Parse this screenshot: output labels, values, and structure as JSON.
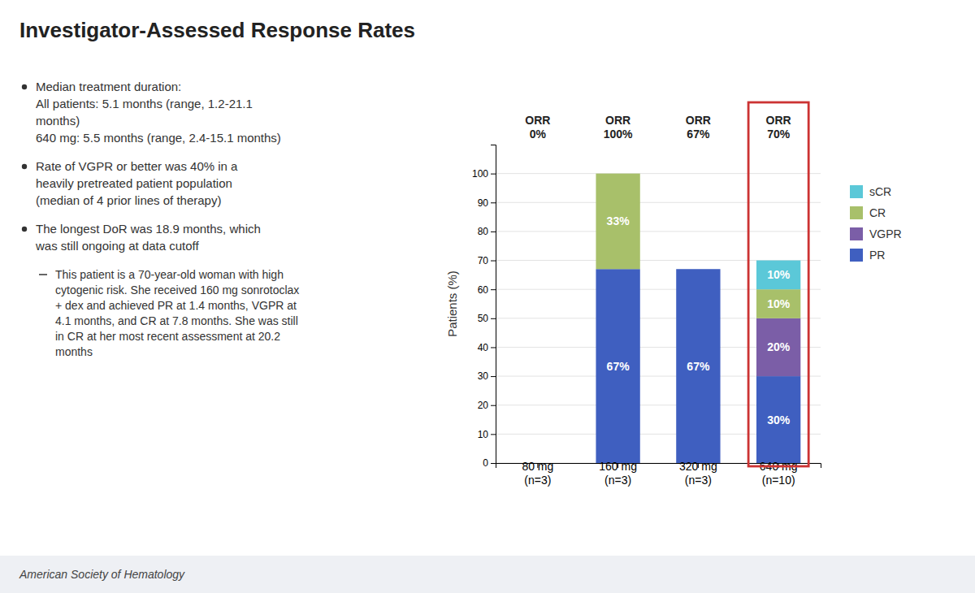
{
  "chart_data": {
    "type": "bar",
    "stacked": true,
    "title": "Investigator-Assessed Response Rates",
    "ylabel": "Patients (%)",
    "categories": [
      "80 mg\n(n=3)",
      "160 mg\n(n=3)",
      "320 mg\n(n=3)",
      "640 mg\n(n=10)"
    ],
    "series": [
      {
        "name": "PR",
        "color": "#3f5fc0",
        "values": [
          0,
          67,
          67,
          30
        ],
        "value_labels": [
          null,
          "67%",
          "67%",
          "30%"
        ]
      },
      {
        "name": "VGPR",
        "color": "#7b5ea7",
        "values": [
          0,
          0,
          0,
          20
        ],
        "value_labels": [
          null,
          null,
          null,
          "20%"
        ]
      },
      {
        "name": "CR",
        "color": "#a8c06a",
        "values": [
          0,
          33,
          0,
          10
        ],
        "value_labels": [
          null,
          "33%",
          null,
          "10%"
        ]
      },
      {
        "name": "sCR",
        "color": "#5bc8d8",
        "values": [
          0,
          0,
          0,
          10
        ],
        "value_labels": [
          null,
          null,
          null,
          "10%"
        ]
      }
    ],
    "data_labels": true,
    "ylim": [
      0,
      110
    ],
    "yticks": [
      0,
      10,
      20,
      30,
      40,
      50,
      60,
      70,
      80,
      90,
      100
    ],
    "grid": true,
    "legend": "right",
    "annotations": [
      {
        "category": "80 mg\n(n=3)",
        "text": "ORR\n0%"
      },
      {
        "category": "160 mg\n(n=3)",
        "text": "ORR\n100%"
      },
      {
        "category": "320 mg\n(n=3)",
        "text": "ORR\n67%"
      },
      {
        "category": "640 mg\n(n=10)",
        "text": "ORR\n70%"
      }
    ],
    "highlight": {
      "category": "640 mg\n(n=10)",
      "color": "#cc3333"
    }
  },
  "text_panel": {
    "bullet_points": [
      "Median treatment duration:\nAll patients: 5.1 months (range, 1.2-21.1\nmonths)\n640 mg: 5.5 months (range, 2.4-15.1 months)",
      "Rate of VGPR or better was 40% in a\nheavily pretreated patient population\n(median of 4 prior lines of therapy)",
      "The longest DoR was 18.9 months, which\nwas still ongoing at data cutoff"
    ],
    "sub_bullet": "This patient is a 70-year-old woman with high\ncytogenic risk. She received 160 mg sonrotoclax\n+ dex and achieved PR at 1.4 months, VGPR at\n4.1 months, and CR at 7.8 months. She was still\nin CR at her most recent assessment at 20.2\nmonths"
  },
  "footer": "American Society of Hematology"
}
